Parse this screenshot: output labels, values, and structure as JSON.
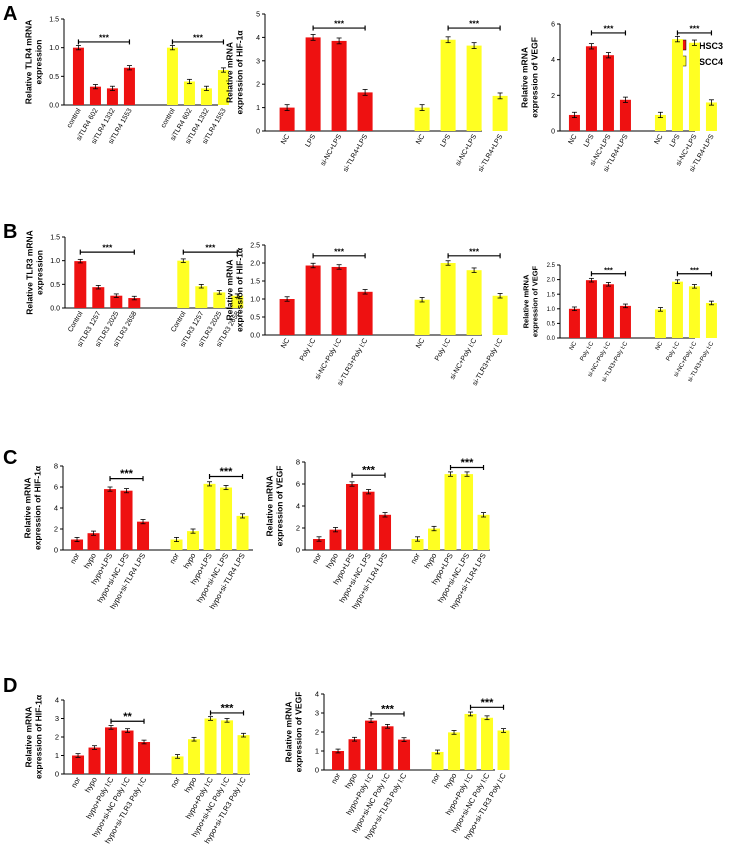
{
  "colors": {
    "HSC3": "#ee1111",
    "SCC4": "#ffff22"
  },
  "legend": [
    "HSC3",
    "SCC4"
  ],
  "panel_labels": [
    "A",
    "B",
    "C",
    "D"
  ],
  "chart_data": [
    {
      "type": "bar",
      "panel": "A",
      "title": "",
      "ylabel": [
        "Relative TLR4 mRNA",
        "expression"
      ],
      "ylim": [
        0,
        1.5
      ],
      "yticks": [
        "0.0",
        "0.5",
        "1.0",
        "1.5"
      ],
      "series": [
        {
          "name": "HSC3",
          "categories": [
            "control",
            "siTLR4 602",
            "siTLR4 1332",
            "siTLR4 1553"
          ],
          "values": [
            1.0,
            0.32,
            0.29,
            0.65
          ]
        },
        {
          "name": "SCC4",
          "categories": [
            "control",
            "siTLR4 602",
            "siTLR4 1332",
            "siTLR4 1553"
          ],
          "values": [
            1.0,
            0.41,
            0.29,
            0.61
          ]
        }
      ],
      "sig": [
        {
          "series": 0,
          "from": 0,
          "to": 3,
          "y": 1.1,
          "label": "***"
        },
        {
          "series": 1,
          "from": 0,
          "to": 3,
          "y": 1.1,
          "label": "***"
        }
      ]
    },
    {
      "type": "bar",
      "panel": "A",
      "title": "",
      "ylabel": [
        "Relative mRNA",
        "expression of HIF-1α"
      ],
      "ylim": [
        0,
        5
      ],
      "yticks": [
        "0",
        "1",
        "2",
        "3",
        "4",
        "5"
      ],
      "series": [
        {
          "name": "HSC3",
          "categories": [
            "NC",
            "LPS",
            "si-NC+LPS",
            "si-TLR4+LPS"
          ],
          "values": [
            1.0,
            4.0,
            3.85,
            1.65
          ]
        },
        {
          "name": "SCC4",
          "categories": [
            "NC",
            "LPS",
            "si-NC+LPS",
            "si-TLR4+LPS"
          ],
          "values": [
            1.0,
            3.9,
            3.65,
            1.5
          ]
        }
      ],
      "sig": [
        {
          "series": 0,
          "from": 1,
          "to": 3,
          "y": 4.4,
          "label": "***"
        },
        {
          "series": 1,
          "from": 1,
          "to": 3,
          "y": 4.4,
          "label": "***"
        }
      ]
    },
    {
      "type": "bar",
      "panel": "A",
      "title": "",
      "ylabel": [
        "Relative mRNA",
        "expression of VEGF"
      ],
      "ylim": [
        0,
        6
      ],
      "yticks": [
        "0",
        "2",
        "4",
        "6"
      ],
      "series": [
        {
          "name": "HSC3",
          "categories": [
            "NC",
            "LPS",
            "si-NC+LPS",
            "si-TLR4+LPS"
          ],
          "values": [
            0.9,
            4.75,
            4.25,
            1.75
          ]
        },
        {
          "name": "SCC4",
          "categories": [
            "NC",
            "LPS",
            "si-NC+LPS",
            "si-TLR4+LPS"
          ],
          "values": [
            0.9,
            5.15,
            4.95,
            1.6
          ]
        }
      ],
      "sig": [
        {
          "series": 0,
          "from": 1,
          "to": 3,
          "y": 5.5,
          "label": "***"
        },
        {
          "series": 1,
          "from": 1,
          "to": 3,
          "y": 5.5,
          "label": "***"
        }
      ]
    },
    {
      "type": "bar",
      "panel": "B",
      "title": "",
      "ylabel": [
        "Relative TLR3 mRNA",
        "expression"
      ],
      "ylim": [
        0,
        1.5
      ],
      "yticks": [
        "0.0",
        "0.5",
        "1.0",
        "1.5"
      ],
      "series": [
        {
          "name": "HSC3",
          "categories": [
            "Control",
            "siTLR3 1257",
            "siTLR3 2025",
            "siTLR3 2658"
          ],
          "values": [
            0.99,
            0.44,
            0.26,
            0.21
          ]
        },
        {
          "name": "SCC4",
          "categories": [
            "Control",
            "siTLR3 1257",
            "siTLR3 2025",
            "siTLR3 2658"
          ],
          "values": [
            1.0,
            0.46,
            0.33,
            0.26
          ]
        }
      ],
      "sig": [
        {
          "series": 0,
          "from": 0,
          "to": 3,
          "y": 1.18,
          "label": "***"
        },
        {
          "series": 1,
          "from": 0,
          "to": 3,
          "y": 1.18,
          "label": "***"
        }
      ]
    },
    {
      "type": "bar",
      "panel": "B",
      "title": "",
      "ylabel": [
        "Relative mRNA",
        "expression of HIF-1α"
      ],
      "ylim": [
        0,
        2.5
      ],
      "yticks": [
        "0.0",
        "0.5",
        "1.0",
        "1.5",
        "2.0",
        "2.5"
      ],
      "series": [
        {
          "name": "HSC3",
          "categories": [
            "NC",
            "Poly I:C",
            "si-NC+Poly I:C",
            "si-TLR3+Poly I:C"
          ],
          "values": [
            1.0,
            1.93,
            1.89,
            1.2
          ]
        },
        {
          "name": "SCC4",
          "categories": [
            "NC",
            "Poly I:C",
            "si-NC+Poly I:C",
            "si-TLR3+Poly I:C"
          ],
          "values": [
            0.98,
            2.0,
            1.8,
            1.09
          ]
        }
      ],
      "sig": [
        {
          "series": 0,
          "from": 1,
          "to": 3,
          "y": 2.2,
          "label": "***"
        },
        {
          "series": 1,
          "from": 1,
          "to": 3,
          "y": 2.2,
          "label": "***"
        }
      ]
    },
    {
      "type": "bar",
      "panel": "B",
      "title": "",
      "ylabel": [
        "Relative mRNA",
        "expression of VEGF"
      ],
      "ylim": [
        0,
        2.5
      ],
      "yticks": [
        "0.0",
        "0.5",
        "1.0",
        "1.5",
        "2.0",
        "2.5"
      ],
      "series": [
        {
          "name": "HSC3",
          "categories": [
            "NC",
            "Poly I:C",
            "si-NC+Poly I:C",
            "si-TLR3+Poly I:C"
          ],
          "values": [
            1.0,
            1.98,
            1.84,
            1.1
          ]
        },
        {
          "name": "SCC4",
          "categories": [
            "NC",
            "Poly I:C",
            "si-NC+Poly I:C",
            "si-TLR3+Poly I:C"
          ],
          "values": [
            0.98,
            1.93,
            1.77,
            1.2
          ]
        }
      ],
      "sig": [
        {
          "series": 0,
          "from": 1,
          "to": 3,
          "y": 2.2,
          "label": "***"
        },
        {
          "series": 1,
          "from": 1,
          "to": 3,
          "y": 2.2,
          "label": "***"
        }
      ]
    },
    {
      "type": "bar",
      "panel": "C",
      "title": "",
      "ylabel": [
        "Relative mRNA",
        "expression of HIF-1α"
      ],
      "ylim": [
        0,
        8
      ],
      "yticks": [
        "0",
        "2",
        "4",
        "6",
        "8"
      ],
      "series": [
        {
          "name": "HSC3",
          "categories": [
            "nor",
            "hypo",
            "hypo+LPS",
            "hypo+si-NC LPS",
            "hypo+si-TLR4 LPS"
          ],
          "values": [
            1.0,
            1.6,
            5.8,
            5.65,
            2.7
          ]
        },
        {
          "name": "SCC4",
          "categories": [
            "nor",
            "hypo",
            "hypo+LPS",
            "hypo+si-NC LPS",
            "hypo+si-TLR4 LPS"
          ],
          "values": [
            1.0,
            1.8,
            6.3,
            5.95,
            3.25
          ]
        }
      ],
      "sig": [
        {
          "series": 0,
          "from": 2,
          "to": 4,
          "y": 6.8,
          "label": "***"
        },
        {
          "series": 1,
          "from": 2,
          "to": 4,
          "y": 7.0,
          "label": "***"
        }
      ]
    },
    {
      "type": "bar",
      "panel": "C",
      "title": "",
      "ylabel": [
        "Relative mRNA",
        "expression of VEGF"
      ],
      "ylim": [
        0,
        8
      ],
      "yticks": [
        "0",
        "2",
        "4",
        "6",
        "8"
      ],
      "series": [
        {
          "name": "HSC3",
          "categories": [
            "nor",
            "hypo",
            "hypo+LPS",
            "hypo+si-NC LPS",
            "hypo+si-TLR4 LPS"
          ],
          "values": [
            1.0,
            1.85,
            6.0,
            5.3,
            3.2
          ]
        },
        {
          "name": "SCC4",
          "categories": [
            "nor",
            "hypo",
            "hypo+LPS",
            "hypo+si-NC LPS",
            "hypo+si-TLR4 LPS"
          ],
          "values": [
            1.0,
            1.95,
            6.9,
            6.9,
            3.2
          ]
        }
      ],
      "sig": [
        {
          "series": 0,
          "from": 2,
          "to": 4,
          "y": 6.8,
          "label": "***"
        },
        {
          "series": 1,
          "from": 2,
          "to": 4,
          "y": 7.5,
          "label": "***"
        }
      ]
    },
    {
      "type": "bar",
      "panel": "D",
      "title": "",
      "ylabel": [
        "Relative mRNA",
        "expression of HIF-1α"
      ],
      "ylim": [
        0,
        4
      ],
      "yticks": [
        "0",
        "1",
        "2",
        "3",
        "4"
      ],
      "series": [
        {
          "name": "HSC3",
          "categories": [
            "nor",
            "hypo",
            "hypo+Poly I:C",
            "hypo+si-NC Poly I:C",
            "hypo+si-TLR3 Poly I:C"
          ],
          "values": [
            1.0,
            1.43,
            2.52,
            2.35,
            1.73
          ]
        },
        {
          "name": "SCC4",
          "categories": [
            "nor",
            "hypo",
            "hypo+Poly I:C",
            "hypo+si-NC Poly I:C",
            "hypo+si-TLR3 Poly I:C"
          ],
          "values": [
            0.95,
            1.88,
            3.0,
            2.9,
            2.1
          ]
        }
      ],
      "sig": [
        {
          "series": 0,
          "from": 2,
          "to": 4,
          "y": 2.85,
          "label": "**"
        },
        {
          "series": 1,
          "from": 2,
          "to": 4,
          "y": 3.3,
          "label": "***"
        }
      ]
    },
    {
      "type": "bar",
      "panel": "D",
      "title": "",
      "ylabel": [
        "Relative mRNA",
        "expression of VEGF"
      ],
      "ylim": [
        0,
        4
      ],
      "yticks": [
        "0",
        "1",
        "2",
        "3",
        "4"
      ],
      "series": [
        {
          "name": "HSC3",
          "categories": [
            "nor",
            "hypo",
            "hypo+Poly I:C",
            "hypo+si-NC Poly I:C",
            "hypo+si-TLR3 Poly I:C"
          ],
          "values": [
            1.0,
            1.62,
            2.6,
            2.3,
            1.6
          ]
        },
        {
          "name": "SCC4",
          "categories": [
            "nor",
            "hypo",
            "hypo+Poly I:C",
            "hypo+si-NC Poly I:C",
            "hypo+si-TLR3 Poly I:C"
          ],
          "values": [
            0.95,
            1.98,
            2.95,
            2.75,
            2.08
          ]
        }
      ],
      "sig": [
        {
          "series": 0,
          "from": 2,
          "to": 4,
          "y": 2.95,
          "label": "***"
        },
        {
          "series": 1,
          "from": 2,
          "to": 4,
          "y": 3.3,
          "label": "***"
        }
      ]
    }
  ]
}
